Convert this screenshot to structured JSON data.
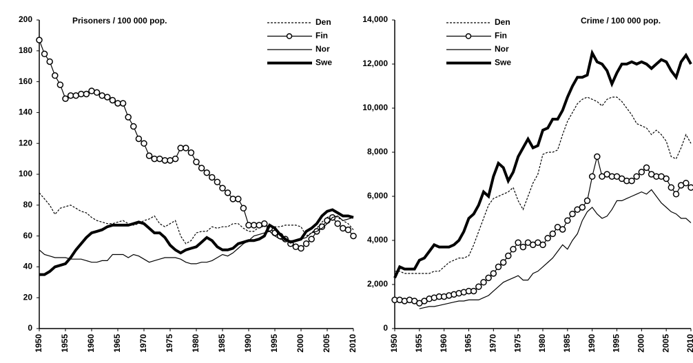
{
  "chart_data": [
    {
      "type": "line",
      "title": "Prisoners / 100 000 pop.",
      "x": [
        1950,
        1951,
        1952,
        1953,
        1954,
        1955,
        1956,
        1957,
        1958,
        1959,
        1960,
        1961,
        1962,
        1963,
        1964,
        1965,
        1966,
        1967,
        1968,
        1969,
        1970,
        1971,
        1972,
        1973,
        1974,
        1975,
        1976,
        1977,
        1978,
        1979,
        1980,
        1981,
        1982,
        1983,
        1984,
        1985,
        1986,
        1987,
        1988,
        1989,
        1990,
        1991,
        1992,
        1993,
        1994,
        1995,
        1996,
        1997,
        1998,
        1999,
        2000,
        2001,
        2002,
        2003,
        2004,
        2005,
        2006,
        2007,
        2008,
        2009,
        2010
      ],
      "xlim": [
        1950,
        2010
      ],
      "xticks": [
        1950,
        1955,
        1960,
        1965,
        1970,
        1975,
        1980,
        1985,
        1990,
        1995,
        2000,
        2005,
        2010
      ],
      "ylim": [
        0,
        200
      ],
      "yticks": [
        0,
        20,
        40,
        60,
        80,
        100,
        120,
        140,
        160,
        180,
        200
      ],
      "legend": "upper right",
      "series": [
        {
          "name": "Den",
          "color": "#000000",
          "dash": true,
          "values": [
            88,
            84,
            80,
            74,
            78,
            79,
            80,
            78,
            76,
            75,
            72,
            70,
            69,
            68,
            68,
            69,
            70,
            68,
            67,
            68,
            70,
            71,
            73,
            68,
            66,
            68,
            70,
            60,
            55,
            57,
            62,
            63,
            63,
            66,
            65,
            66,
            66,
            68,
            68,
            65,
            63,
            63,
            66,
            66,
            67,
            66,
            66,
            67,
            67,
            67,
            66,
            60,
            62,
            65,
            69,
            72,
            74,
            72,
            70,
            68,
            64
          ]
        },
        {
          "name": "Fin",
          "color": "#000000",
          "marker": "circle",
          "values": [
            187,
            178,
            173,
            164,
            158,
            149,
            151,
            151,
            152,
            152,
            154,
            153,
            151,
            150,
            148,
            146,
            146,
            137,
            131,
            123,
            120,
            112,
            110,
            110,
            109,
            109,
            110,
            117,
            117,
            114,
            108,
            104,
            101,
            98,
            95,
            91,
            88,
            84,
            84,
            78,
            67,
            67,
            67,
            68,
            65,
            62,
            60,
            58,
            55,
            53,
            52,
            55,
            58,
            63,
            66,
            70,
            72,
            68,
            65,
            64,
            60
          ]
        },
        {
          "name": "Nor",
          "color": "#000000",
          "values": [
            51,
            48,
            47,
            46,
            46,
            46,
            45,
            45,
            45,
            44,
            43,
            43,
            44,
            44,
            48,
            48,
            48,
            46,
            48,
            47,
            45,
            43,
            44,
            45,
            46,
            46,
            46,
            45,
            43,
            42,
            42,
            43,
            43,
            44,
            46,
            48,
            47,
            49,
            52,
            55,
            57,
            60,
            61,
            62,
            63,
            60,
            58,
            57,
            57,
            57,
            58,
            59,
            62,
            63,
            65,
            68,
            72,
            73,
            70,
            71,
            72
          ]
        },
        {
          "name": "Swe",
          "color": "#000000",
          "width": 4,
          "values": [
            35,
            35,
            37,
            40,
            41,
            42,
            46,
            51,
            55,
            59,
            62,
            63,
            64,
            66,
            67,
            67,
            67,
            67,
            68,
            69,
            68,
            65,
            62,
            62,
            59,
            54,
            51,
            49,
            51,
            52,
            53,
            56,
            59,
            57,
            53,
            51,
            51,
            52,
            55,
            56,
            57,
            57,
            58,
            60,
            67,
            65,
            61,
            58,
            56,
            57,
            58,
            63,
            65,
            68,
            73,
            76,
            77,
            75,
            73,
            73,
            72
          ]
        }
      ]
    },
    {
      "type": "line",
      "title": "Crime / 100 000 pop.",
      "x": [
        1950,
        1951,
        1952,
        1953,
        1954,
        1955,
        1956,
        1957,
        1958,
        1959,
        1960,
        1961,
        1962,
        1963,
        1964,
        1965,
        1966,
        1967,
        1968,
        1969,
        1970,
        1971,
        1972,
        1973,
        1974,
        1975,
        1976,
        1977,
        1978,
        1979,
        1980,
        1981,
        1982,
        1983,
        1984,
        1985,
        1986,
        1987,
        1988,
        1989,
        1990,
        1991,
        1992,
        1993,
        1994,
        1995,
        1996,
        1997,
        1998,
        1999,
        2000,
        2001,
        2002,
        2003,
        2004,
        2005,
        2006,
        2007,
        2008,
        2009,
        2010
      ],
      "xlim": [
        1950,
        2010
      ],
      "xticks": [
        1950,
        1955,
        1960,
        1965,
        1970,
        1975,
        1980,
        1985,
        1990,
        1995,
        2000,
        2005,
        2010
      ],
      "ylim": [
        0,
        14000
      ],
      "yticks": [
        0,
        {
          "value": 2000,
          "label": "2,000"
        },
        {
          "value": 4000,
          "label": "4,000"
        },
        {
          "value": 6000,
          "label": "6,000"
        },
        {
          "value": 8000,
          "label": "8,000"
        },
        {
          "value": 10000,
          "label": "10,000"
        },
        {
          "value": 12000,
          "label": "12,000"
        },
        {
          "value": 14000,
          "label": "14,000"
        }
      ],
      "legend": "upper left",
      "series": [
        {
          "name": "Den",
          "color": "#000000",
          "dash": true,
          "values": [
            2600,
            2600,
            2500,
            2500,
            2500,
            2500,
            2500,
            2500,
            2600,
            2600,
            2800,
            3000,
            3100,
            3200,
            3200,
            3300,
            3800,
            4400,
            5000,
            5600,
            5900,
            6000,
            6100,
            6200,
            6400,
            5800,
            5400,
            6000,
            6600,
            7000,
            7900,
            8000,
            8000,
            8100,
            8800,
            9400,
            9800,
            10200,
            10400,
            10500,
            10400,
            10300,
            10100,
            10400,
            10500,
            10500,
            10300,
            10000,
            9700,
            9300,
            9200,
            9100,
            8800,
            9000,
            8800,
            8500,
            7800,
            7700,
            8200,
            8800,
            8400
          ]
        },
        {
          "name": "Fin",
          "color": "#000000",
          "marker": "circle",
          "values": [
            1300,
            1300,
            1250,
            1300,
            1250,
            1150,
            1250,
            1350,
            1400,
            1450,
            1450,
            1500,
            1550,
            1600,
            1650,
            1700,
            1700,
            1900,
            2100,
            2300,
            2500,
            2800,
            3000,
            3300,
            3600,
            3900,
            3700,
            3900,
            3800,
            3900,
            3800,
            4100,
            4300,
            4600,
            4500,
            4900,
            5200,
            5400,
            5500,
            5800,
            6900,
            7800,
            6900,
            7000,
            6900,
            6900,
            6800,
            6700,
            6700,
            6900,
            7100,
            7300,
            7000,
            6900,
            6900,
            6800,
            6400,
            6100,
            6500,
            6600,
            6400
          ]
        },
        {
          "name": "Nor",
          "color": "#000000",
          "values": [
            null,
            null,
            null,
            null,
            null,
            900,
            950,
            1000,
            1000,
            1050,
            1100,
            1150,
            1200,
            1250,
            1250,
            1300,
            1300,
            1300,
            1400,
            1500,
            1700,
            1900,
            2100,
            2200,
            2300,
            2400,
            2200,
            2200,
            2500,
            2600,
            2800,
            3000,
            3200,
            3500,
            3800,
            3600,
            4000,
            4300,
            4900,
            5300,
            5500,
            5200,
            5000,
            5100,
            5400,
            5800,
            5800,
            5900,
            6000,
            6100,
            6200,
            6100,
            6300,
            6000,
            5700,
            5500,
            5300,
            5200,
            5000,
            5000,
            4800
          ]
        },
        {
          "name": "Swe",
          "color": "#000000",
          "width": 4,
          "values": [
            2300,
            2800,
            2700,
            2700,
            2700,
            3100,
            3200,
            3500,
            3800,
            3700,
            3700,
            3700,
            3800,
            4000,
            4400,
            5000,
            5200,
            5600,
            6200,
            6000,
            6900,
            7500,
            7300,
            6700,
            7100,
            7800,
            8200,
            8600,
            8200,
            8300,
            9000,
            9100,
            9500,
            9500,
            9900,
            10500,
            11000,
            11400,
            11400,
            11500,
            12500,
            12100,
            12000,
            11700,
            11100,
            11600,
            12000,
            12000,
            12100,
            12000,
            12100,
            12000,
            11800,
            12000,
            12200,
            12100,
            11700,
            11400,
            12100,
            12400,
            12000
          ]
        }
      ]
    }
  ]
}
